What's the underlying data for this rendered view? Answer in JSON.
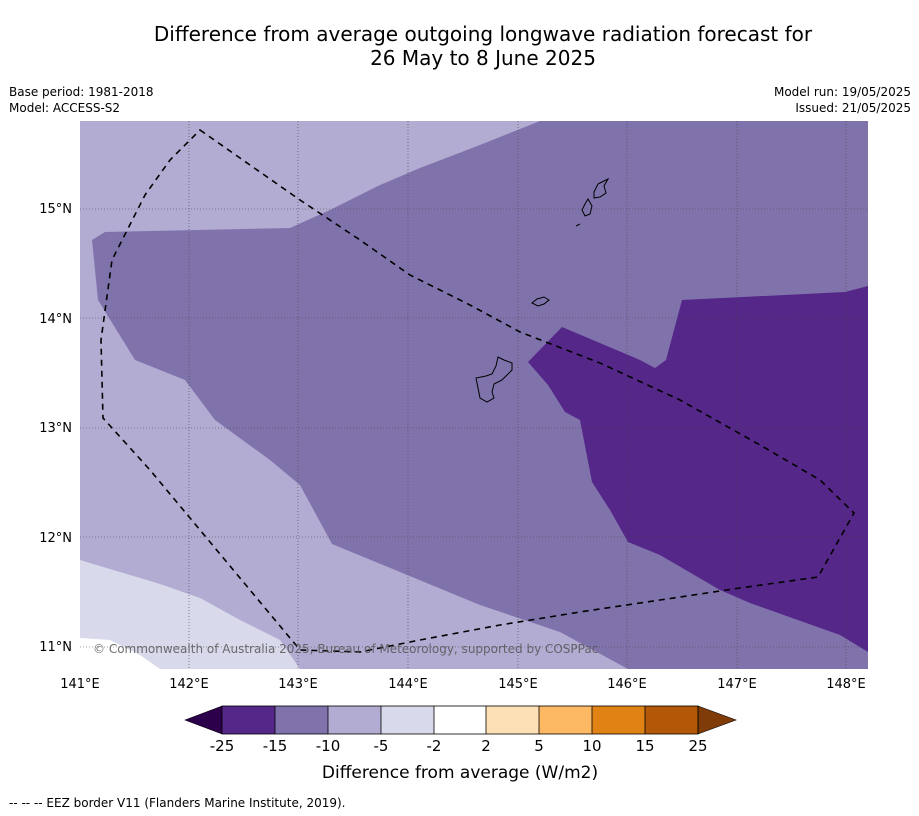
{
  "header": {
    "title_line1": "Difference from average outgoing longwave radiation forecast for",
    "title_line2": "26 May to 8 June 2025",
    "base_period": "Base period: 1981-2018",
    "model": "Model: ACCESS-S2",
    "model_run": "Model run: 19/05/2025",
    "issued": "Issued: 21/05/2025"
  },
  "map": {
    "lon_ticks": [
      "141°E",
      "142°E",
      "143°E",
      "144°E",
      "145°E",
      "146°E",
      "147°E",
      "148°E"
    ],
    "lat_ticks": [
      "15°N",
      "14°N",
      "13°N",
      "12°N",
      "11°N"
    ],
    "copyright": "© Commonwealth of Australia 2025, Bureau of Meteorology, supported by COSPPac",
    "colors": {
      "band_-25_-15": "#542788",
      "band_-15_-10": "#8073ac",
      "band_-10_-5": "#b2abd2",
      "band_-5_-2": "#d8daeb",
      "band_-2_2": "#ffffff",
      "band_2_5": "#fee0b6",
      "band_5_10": "#fdb863",
      "band_10_15": "#e08214",
      "band_15_25": "#b35806",
      "extend_low": "#2d004b",
      "extend_high": "#7f3b08"
    }
  },
  "colorbar": {
    "labels": [
      "-25",
      "-15",
      "-10",
      "-5",
      "-2",
      "2",
      "5",
      "10",
      "15",
      "25"
    ],
    "title": "Difference from average (W/m2)"
  },
  "footer": {
    "legend_text": "--  --  -- EEZ border V11 (Flanders Marine Institute, 2019)."
  }
}
